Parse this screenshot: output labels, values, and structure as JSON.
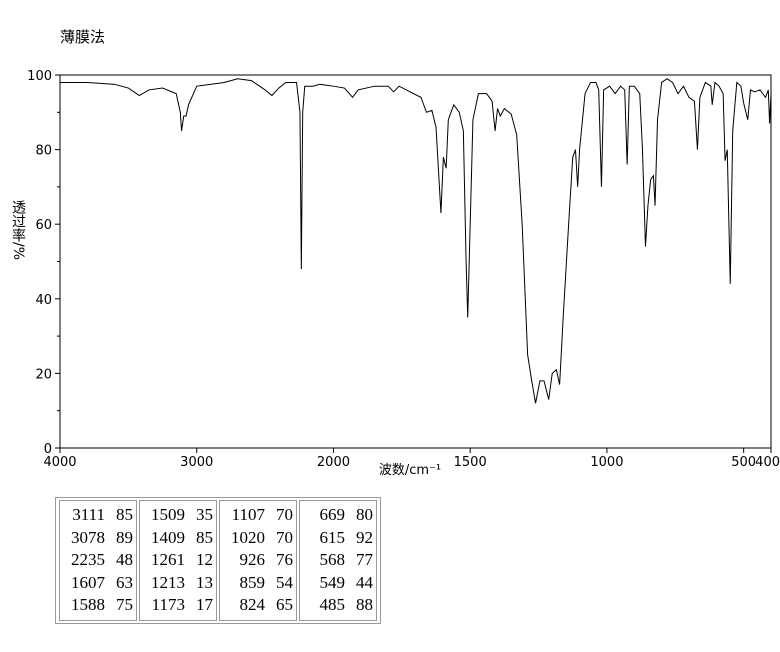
{
  "chart_data": {
    "type": "line",
    "title": "薄膜法",
    "xlabel": "波数/cm⁻¹",
    "ylabel": "透过率/%",
    "color": "#000000",
    "xlim": [
      4000,
      400
    ],
    "x_expand_below": 2000,
    "x_expand_factor": 2,
    "xticks": [
      4000,
      3000,
      2000,
      1500,
      1000,
      500,
      400
    ],
    "ylim": [
      0,
      100
    ],
    "yticks": [
      0,
      20,
      40,
      60,
      80,
      100
    ],
    "yminorticks": [
      10,
      30,
      50,
      70,
      90
    ],
    "x": [
      4000,
      3800,
      3600,
      3500,
      3420,
      3350,
      3250,
      3150,
      3120,
      3111,
      3095,
      3078,
      3060,
      3000,
      2900,
      2800,
      2700,
      2600,
      2500,
      2450,
      2400,
      2350,
      2270,
      2245,
      2235,
      2225,
      2210,
      2150,
      2100,
      2000,
      1960,
      1930,
      1910,
      1850,
      1800,
      1780,
      1760,
      1720,
      1680,
      1660,
      1640,
      1625,
      1607,
      1598,
      1588,
      1580,
      1560,
      1540,
      1525,
      1515,
      1509,
      1500,
      1490,
      1470,
      1440,
      1420,
      1409,
      1400,
      1390,
      1375,
      1350,
      1330,
      1310,
      1290,
      1275,
      1261,
      1245,
      1230,
      1213,
      1200,
      1185,
      1173,
      1160,
      1140,
      1125,
      1115,
      1107,
      1100,
      1080,
      1060,
      1040,
      1030,
      1020,
      1012,
      990,
      970,
      950,
      935,
      926,
      918,
      900,
      880,
      870,
      859,
      850,
      840,
      830,
      824,
      815,
      800,
      780,
      760,
      740,
      720,
      700,
      680,
      669,
      660,
      640,
      620,
      615,
      605,
      590,
      575,
      568,
      560,
      549,
      540,
      525,
      510,
      500,
      485,
      475,
      460,
      440,
      420,
      410,
      405,
      400
    ],
    "values": [
      98,
      98,
      97.5,
      96.5,
      94.5,
      96,
      96.5,
      95,
      90,
      85,
      89,
      89,
      92,
      97,
      97.5,
      98,
      99,
      98.5,
      96,
      94.5,
      96.5,
      98,
      98,
      90,
      48,
      90,
      97,
      97,
      97.5,
      97,
      96.5,
      94,
      96,
      97,
      97,
      95.5,
      97,
      95.5,
      94,
      90,
      90.5,
      86,
      63,
      78,
      75,
      88,
      92,
      90,
      85,
      50,
      35,
      60,
      88,
      95,
      95,
      93,
      85,
      91,
      89,
      91,
      89.5,
      84,
      60,
      25,
      18,
      12,
      18,
      18,
      13,
      20,
      21,
      17,
      35,
      60,
      78,
      80,
      70,
      80,
      95,
      98,
      98,
      96,
      70,
      96,
      97,
      95,
      97,
      96,
      76,
      97,
      97,
      95,
      80,
      54,
      65,
      72,
      73,
      65,
      88,
      98,
      99,
      98,
      95,
      97,
      94,
      93,
      80,
      94,
      98,
      97,
      92,
      98,
      97,
      95,
      77,
      80,
      44,
      85,
      98,
      97,
      92.5,
      88,
      96,
      95.5,
      96,
      94,
      96,
      87,
      95
    ]
  },
  "peak_table": [
    [
      [
        "3111",
        "85"
      ],
      [
        "3078",
        "89"
      ],
      [
        "2235",
        "48"
      ],
      [
        "1607",
        "63"
      ],
      [
        "1588",
        "75"
      ]
    ],
    [
      [
        "1509",
        "35"
      ],
      [
        "1409",
        "85"
      ],
      [
        "1261",
        "12"
      ],
      [
        "1213",
        "13"
      ],
      [
        "1173",
        "17"
      ]
    ],
    [
      [
        "1107",
        "70"
      ],
      [
        "1020",
        "70"
      ],
      [
        "926",
        "76"
      ],
      [
        "859",
        "54"
      ],
      [
        "824",
        "65"
      ]
    ],
    [
      [
        "669",
        "80"
      ],
      [
        "615",
        "92"
      ],
      [
        "568",
        "77"
      ],
      [
        "549",
        "44"
      ],
      [
        "485",
        "88"
      ]
    ]
  ]
}
